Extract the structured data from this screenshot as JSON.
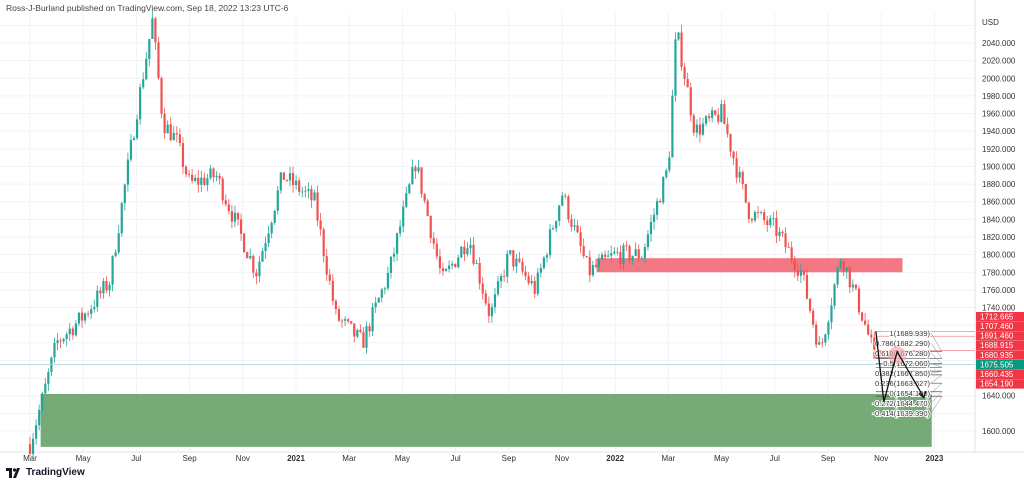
{
  "header": {
    "publisher": "Ross-J-Burland published on TradingView.com, Sep 18, 2022 13:23 UTC-6"
  },
  "brand": {
    "name": "TradingView"
  },
  "colors": {
    "up": "#26a69a",
    "down": "#ef5350",
    "zone_red": "#f0606e",
    "zone_green": "#5e9b5e",
    "badge_red": "#f23645",
    "badge_green": "#089981"
  },
  "chart_data": {
    "type": "candlestick",
    "title": "",
    "currency": "USD",
    "ylim": [
      1576,
      2080
    ],
    "yticks": [
      2040,
      2020,
      2000,
      1980,
      1960,
      1940,
      1920,
      1900,
      1880,
      1860,
      1840,
      1820,
      1800,
      1780,
      1760,
      1740,
      1640,
      1600
    ],
    "xticks": [
      "Mar",
      "May",
      "Jul",
      "Sep",
      "Nov",
      "2021",
      "Mar",
      "May",
      "Jul",
      "Sep",
      "Nov",
      "2022",
      "Mar",
      "May",
      "Jul",
      "Sep",
      "Nov",
      "2023"
    ],
    "price_path": [
      {
        "t": 0,
        "p": 1585
      },
      {
        "t": 0.5,
        "p": 1640
      },
      {
        "t": 1,
        "p": 1700
      },
      {
        "t": 2,
        "p": 1730
      },
      {
        "t": 3,
        "p": 1770
      },
      {
        "t": 4,
        "p": 1960
      },
      {
        "t": 4.6,
        "p": 2065
      },
      {
        "t": 5,
        "p": 1950
      },
      {
        "t": 5.5,
        "p": 1930
      },
      {
        "t": 6,
        "p": 1880
      },
      {
        "t": 7,
        "p": 1890
      },
      {
        "t": 8.5,
        "p": 1780
      },
      {
        "t": 9.5,
        "p": 1890
      },
      {
        "t": 10.7,
        "p": 1860
      },
      {
        "t": 11.5,
        "p": 1730
      },
      {
        "t": 12.5,
        "p": 1700
      },
      {
        "t": 13.5,
        "p": 1780
      },
      {
        "t": 14.5,
        "p": 1905
      },
      {
        "t": 15.5,
        "p": 1770
      },
      {
        "t": 16.5,
        "p": 1820
      },
      {
        "t": 17.3,
        "p": 1730
      },
      {
        "t": 18,
        "p": 1800
      },
      {
        "t": 19,
        "p": 1760
      },
      {
        "t": 20,
        "p": 1870
      },
      {
        "t": 21,
        "p": 1780
      },
      {
        "t": 22,
        "p": 1800
      },
      {
        "t": 23,
        "p": 1800
      },
      {
        "t": 24,
        "p": 1900
      },
      {
        "t": 24.3,
        "p": 2055
      },
      {
        "t": 25,
        "p": 1940
      },
      {
        "t": 26,
        "p": 1960
      },
      {
        "t": 27,
        "p": 1850
      },
      {
        "t": 28,
        "p": 1830
      },
      {
        "t": 29,
        "p": 1780
      },
      {
        "t": 29.7,
        "p": 1690
      },
      {
        "t": 30.5,
        "p": 1800
      },
      {
        "t": 31.3,
        "p": 1730
      },
      {
        "t": 31.6,
        "p": 1700
      },
      {
        "t": 31.8,
        "p": 1675
      }
    ],
    "last_price": 1675.505,
    "price_labels": [
      {
        "value": "1712.665",
        "color": "red"
      },
      {
        "value": "1707.460",
        "color": "red"
      },
      {
        "value": "1691.460",
        "color": "red"
      },
      {
        "value": "1688.915",
        "color": "red"
      },
      {
        "value": "1680.935",
        "color": "red"
      },
      {
        "value": "1675.505",
        "color": "green"
      },
      {
        "value": "1660.435",
        "color": "red"
      },
      {
        "value": "1654.190",
        "color": "red"
      }
    ],
    "fib_levels": [
      {
        "ratio": "1",
        "price": 1689.939
      },
      {
        "ratio": "0.786",
        "price": 1682.29
      },
      {
        "ratio": "0.618",
        "price": 1676.28
      },
      {
        "ratio": "0.5",
        "price": 1672.06
      },
      {
        "ratio": "0.382",
        "price": 1667.85
      },
      {
        "ratio": "0.236",
        "price": 1663.627
      },
      {
        "ratio": "0",
        "price": 1654.19
      },
      {
        "ratio": "-0.272",
        "price": 1644.47
      },
      {
        "ratio": "-0.414",
        "price": 1639.39
      }
    ],
    "zones": [
      {
        "name": "supply-zone",
        "from_t": 21.3,
        "to_t": 32.8,
        "top": 1796,
        "bottom": 1780,
        "color": "red"
      },
      {
        "name": "demand-zone",
        "from_t": 0.4,
        "to_t": 33.9,
        "top": 1642,
        "bottom": 1582,
        "color": "green"
      },
      {
        "name": "small-zone",
        "from_t": 31.7,
        "to_t": 32.6,
        "top": 1690,
        "bottom": 1682,
        "color": "red"
      }
    ],
    "projection_path": [
      {
        "t": 31.8,
        "p": 1713
      },
      {
        "t": 32.1,
        "p": 1633
      },
      {
        "t": 32.6,
        "p": 1690
      },
      {
        "t": 33.6,
        "p": 1638
      }
    ]
  }
}
